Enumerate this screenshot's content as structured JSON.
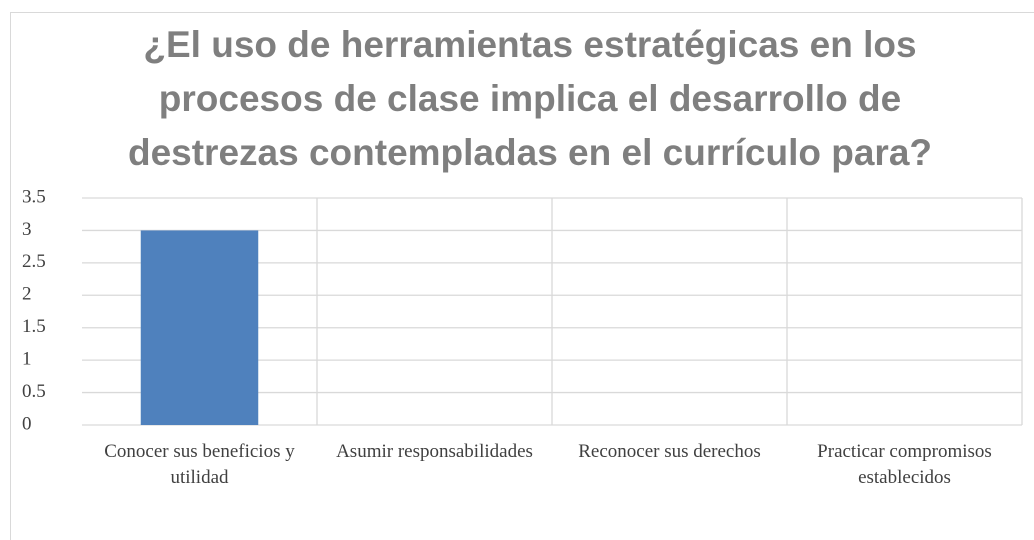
{
  "chart_data": {
    "type": "bar",
    "title": "¿El uso de herramientas estratégicas en los procesos de clase implica el desarrollo de destrezas contempladas en el currículo para?",
    "categories": [
      "Conocer sus beneficios y utilidad",
      "Asumir responsabilidades",
      "Reconocer sus derechos",
      "Practicar compromisos establecidos"
    ],
    "values": [
      3,
      0,
      0,
      0
    ],
    "color": "#4f81bd",
    "ylim": [
      0,
      3.5
    ],
    "yticks": [
      0,
      0.5,
      1,
      1.5,
      2,
      2.5,
      3,
      3.5
    ],
    "grid": true
  }
}
